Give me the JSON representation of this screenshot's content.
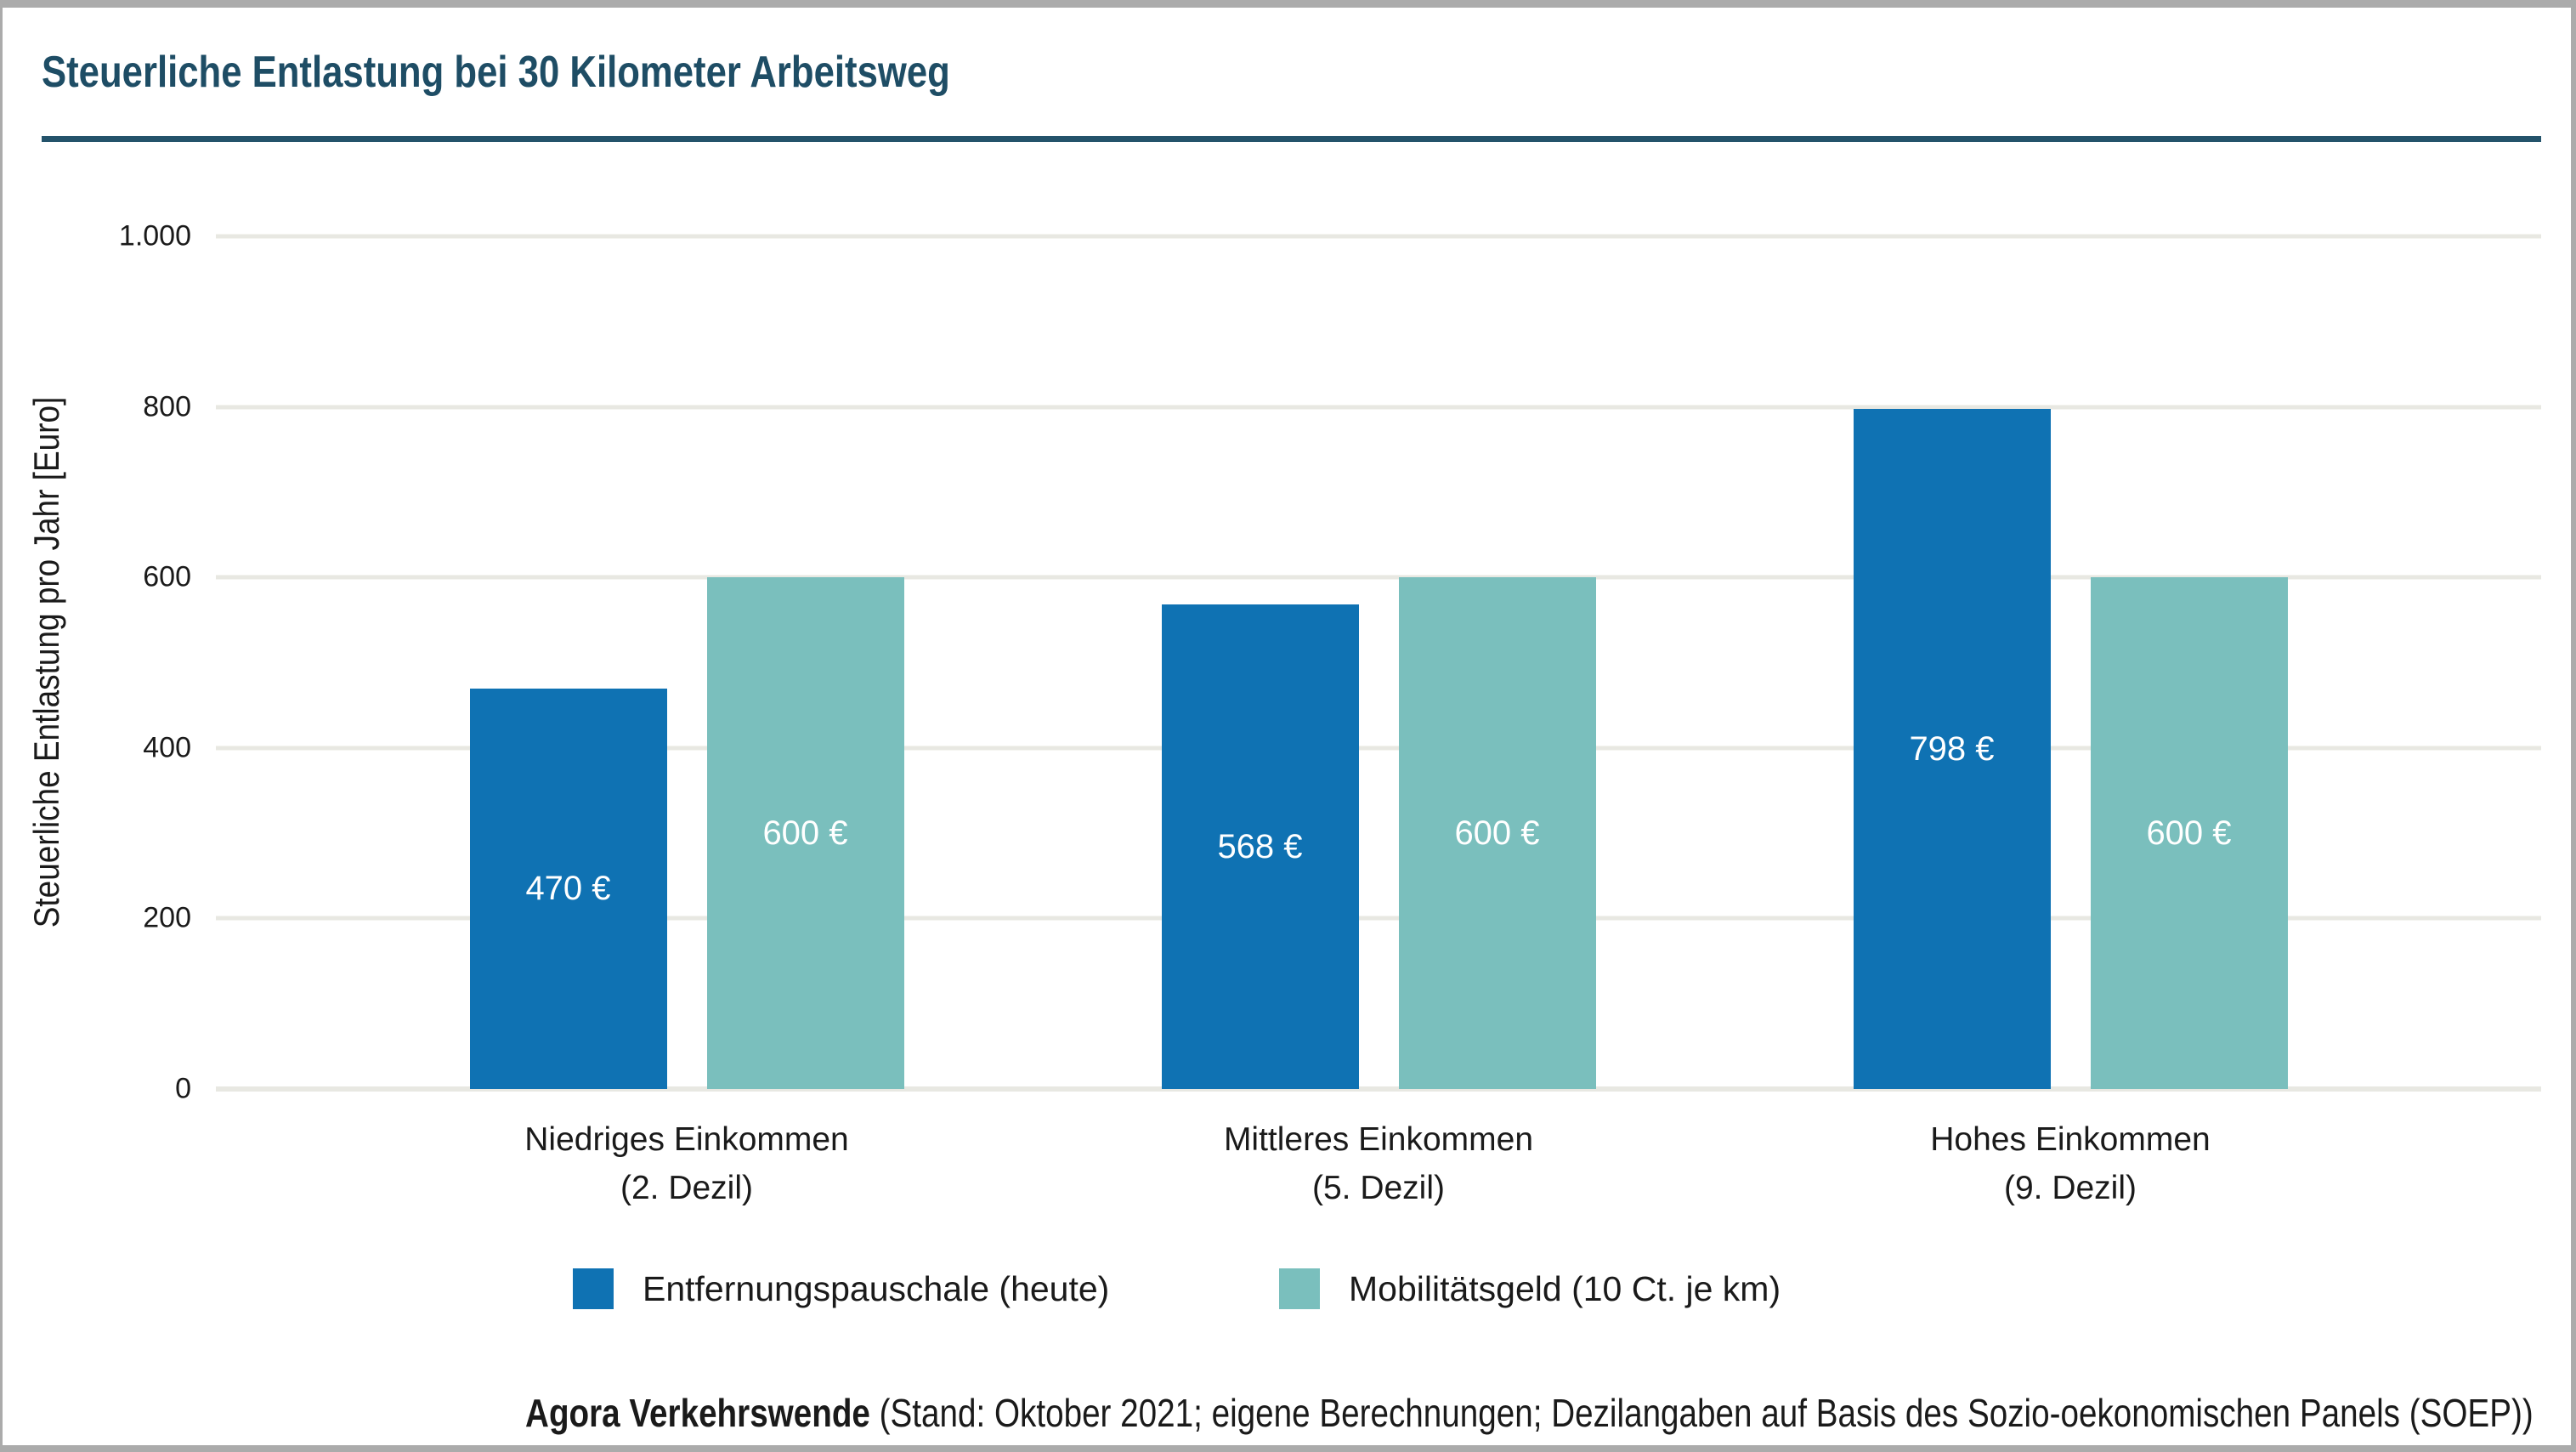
{
  "header": {
    "title": "Steuerliche Entlastung bei 30 Kilometer Arbeitsweg",
    "title_color": "#1e4d65",
    "rule_color": "#24536b"
  },
  "chart_data": {
    "type": "bar",
    "title": "Steuerliche Entlastung bei 30 Kilometer Arbeitsweg",
    "xlabel": "",
    "ylabel": "Steuerliche Entlastung pro Jahr [Euro]",
    "ylim": [
      0,
      1000
    ],
    "grid": true,
    "gridline_color": "#e8e8e2",
    "background_color": "#ffffff",
    "yticks": [
      {
        "value": 1000,
        "label": "1.000"
      },
      {
        "value": 800,
        "label": "800"
      },
      {
        "value": 600,
        "label": "600"
      },
      {
        "value": 400,
        "label": "400"
      },
      {
        "value": 200,
        "label": "200"
      },
      {
        "value": 0,
        "label": "0"
      }
    ],
    "categories": [
      {
        "lines": [
          "Niedriges Einkommen",
          "(2. Dezil)"
        ]
      },
      {
        "lines": [
          "Mittleres Einkommen",
          "(5. Dezil)"
        ]
      },
      {
        "lines": [
          "Hohes Einkommen",
          "(9. Dezil)"
        ]
      }
    ],
    "series": [
      {
        "name": "Entfernungspauschale (heute)",
        "color": "#0f72b3",
        "values": [
          470,
          568,
          798
        ],
        "value_labels": [
          "470 €",
          "568 €",
          "798 €"
        ]
      },
      {
        "name": "Mobilitätsgeld (10 Ct. je km)",
        "color": "#7abfbd",
        "values": [
          600,
          600,
          600
        ],
        "value_labels": [
          "600 €",
          "600 €",
          "600 €"
        ]
      }
    ],
    "value_label_color": "#ffffff",
    "legend_position": "bottom"
  },
  "footer": {
    "source_bold": "Agora Verkehrswende",
    "source_rest": " (Stand: Oktober 2021; eigene Berechnungen; Dezilangaben auf Basis des Sozio-oekonomischen Panels (SOEP))"
  }
}
